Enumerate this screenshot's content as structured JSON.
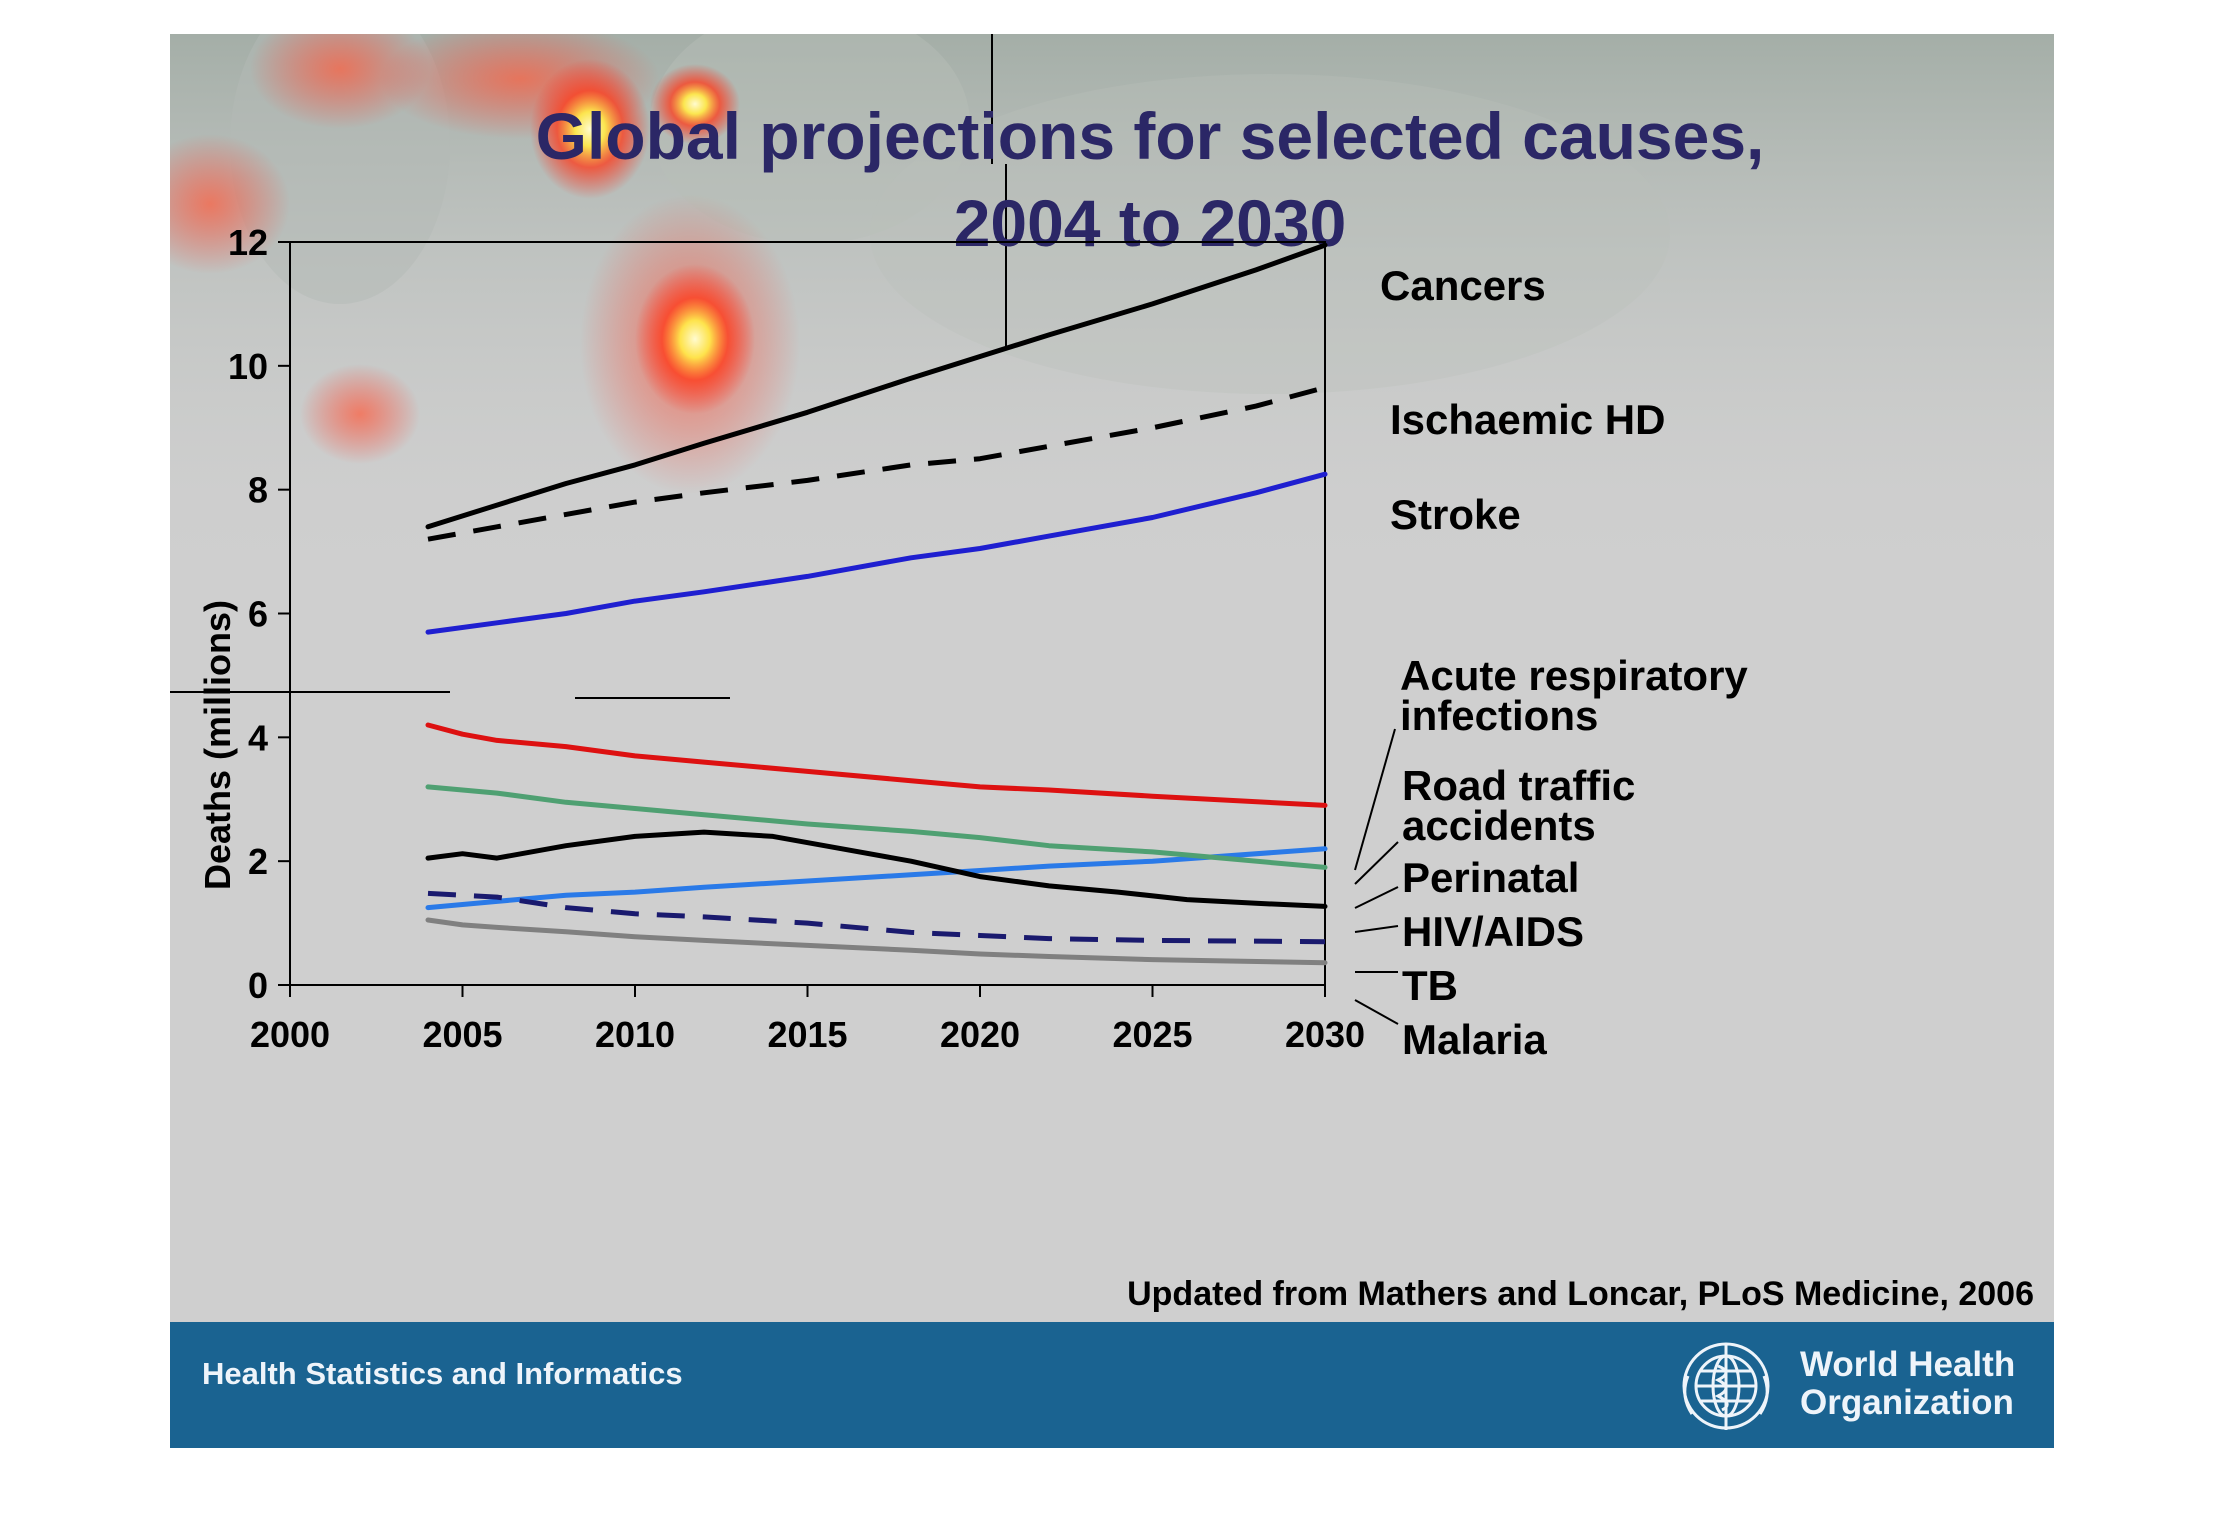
{
  "slide": {
    "title_line1": "Global projections for selected causes,",
    "title_line2": "2004 to 2030",
    "source_note": "Updated from Mathers and Loncar, PLoS Medicine, 2006",
    "footer_text": "Health Statistics and Informatics",
    "org_name_line1": "World Health",
    "org_name_line2": "Organization",
    "colors": {
      "title": "#2b2766",
      "slide_bg": "#cfcfcf",
      "footer_bg": "#1a6391",
      "heatmap_hot": "#fff8a0",
      "heatmap_warm": "#ff2a1a"
    }
  },
  "chart_data": {
    "type": "line",
    "title": "Global projections for selected causes, 2004 to 2030",
    "xlabel": "",
    "ylabel": "Deaths (millions)",
    "xlim": [
      2000,
      2030
    ],
    "ylim": [
      0,
      12
    ],
    "xticks": [
      2000,
      2005,
      2010,
      2015,
      2020,
      2025,
      2030
    ],
    "yticks": [
      0,
      2,
      4,
      6,
      8,
      10,
      12
    ],
    "grid": false,
    "legend": "labels at right end of lines",
    "series": [
      {
        "name": "Cancers",
        "color": "#000000",
        "style": "solid",
        "x": [
          2004,
          2006,
          2008,
          2010,
          2012,
          2015,
          2018,
          2020,
          2022,
          2025,
          2028,
          2030
        ],
        "y": [
          7.4,
          7.75,
          8.1,
          8.4,
          8.75,
          9.25,
          9.8,
          10.15,
          10.5,
          11.0,
          11.55,
          11.95
        ]
      },
      {
        "name": "Ischaemic HD",
        "color": "#000000",
        "style": "dashed",
        "x": [
          2004,
          2006,
          2008,
          2010,
          2012,
          2015,
          2018,
          2020,
          2022,
          2025,
          2028,
          2030
        ],
        "y": [
          7.2,
          7.4,
          7.6,
          7.8,
          7.95,
          8.15,
          8.4,
          8.5,
          8.7,
          9.0,
          9.35,
          9.65
        ]
      },
      {
        "name": "Stroke",
        "color": "#1f1fd0",
        "style": "solid",
        "x": [
          2004,
          2006,
          2008,
          2010,
          2012,
          2015,
          2018,
          2020,
          2022,
          2025,
          2028,
          2030
        ],
        "y": [
          5.7,
          5.85,
          6.0,
          6.2,
          6.35,
          6.6,
          6.9,
          7.05,
          7.25,
          7.55,
          7.95,
          8.25
        ]
      },
      {
        "name": "Acute respiratory infections",
        "color": "#dd1111",
        "style": "solid",
        "x": [
          2004,
          2005,
          2006,
          2008,
          2010,
          2012,
          2015,
          2018,
          2020,
          2022,
          2025,
          2030
        ],
        "y": [
          4.2,
          4.05,
          3.95,
          3.85,
          3.7,
          3.6,
          3.45,
          3.3,
          3.2,
          3.15,
          3.05,
          2.9
        ]
      },
      {
        "name": "Road traffic accidents",
        "color": "#2a7ae8",
        "style": "solid",
        "x": [
          2004,
          2006,
          2008,
          2010,
          2012,
          2015,
          2018,
          2020,
          2022,
          2025,
          2030
        ],
        "y": [
          1.25,
          1.35,
          1.45,
          1.5,
          1.58,
          1.68,
          1.78,
          1.85,
          1.92,
          2.0,
          2.2
        ]
      },
      {
        "name": "Perinatal",
        "color": "#4fa072",
        "style": "solid",
        "x": [
          2004,
          2006,
          2008,
          2010,
          2012,
          2015,
          2018,
          2020,
          2022,
          2025,
          2030
        ],
        "y": [
          3.2,
          3.1,
          2.95,
          2.85,
          2.75,
          2.6,
          2.48,
          2.38,
          2.25,
          2.15,
          1.9
        ]
      },
      {
        "name": "HIV/AIDS",
        "color": "#000000",
        "style": "solid",
        "x": [
          2004,
          2005,
          2006,
          2008,
          2010,
          2012,
          2014,
          2016,
          2018,
          2020,
          2022,
          2024,
          2026,
          2028,
          2030
        ],
        "y": [
          2.05,
          2.12,
          2.05,
          2.25,
          2.4,
          2.47,
          2.4,
          2.2,
          2.0,
          1.75,
          1.6,
          1.5,
          1.38,
          1.32,
          1.27
        ]
      },
      {
        "name": "TB",
        "color": "#1a1a6e",
        "style": "dashed",
        "x": [
          2004,
          2006,
          2008,
          2010,
          2012,
          2015,
          2018,
          2020,
          2022,
          2025,
          2030
        ],
        "y": [
          1.48,
          1.42,
          1.25,
          1.15,
          1.1,
          1.0,
          0.85,
          0.8,
          0.75,
          0.72,
          0.7
        ]
      },
      {
        "name": "Malaria",
        "color": "#808080",
        "style": "solid",
        "x": [
          2004,
          2005,
          2006,
          2008,
          2010,
          2012,
          2015,
          2018,
          2020,
          2022,
          2025,
          2030
        ],
        "y": [
          1.05,
          0.97,
          0.93,
          0.86,
          0.78,
          0.72,
          0.64,
          0.56,
          0.5,
          0.46,
          0.41,
          0.36
        ]
      }
    ],
    "series_labels": [
      {
        "series": "Cancers",
        "lines": [
          "Cancers"
        ]
      },
      {
        "series": "Ischaemic HD",
        "lines": [
          "Ischaemic HD"
        ]
      },
      {
        "series": "Stroke",
        "lines": [
          "Stroke"
        ]
      },
      {
        "series": "Acute respiratory infections",
        "lines": [
          "Acute respiratory",
          "infections"
        ]
      },
      {
        "series": "Road traffic accidents",
        "lines": [
          "Road traffic",
          "accidents"
        ]
      },
      {
        "series": "Perinatal",
        "lines": [
          "Perinatal"
        ]
      },
      {
        "series": "HIV/AIDS",
        "lines": [
          "HIV/AIDS"
        ]
      },
      {
        "series": "TB",
        "lines": [
          "TB"
        ]
      },
      {
        "series": "Malaria",
        "lines": [
          "Malaria"
        ]
      }
    ]
  }
}
